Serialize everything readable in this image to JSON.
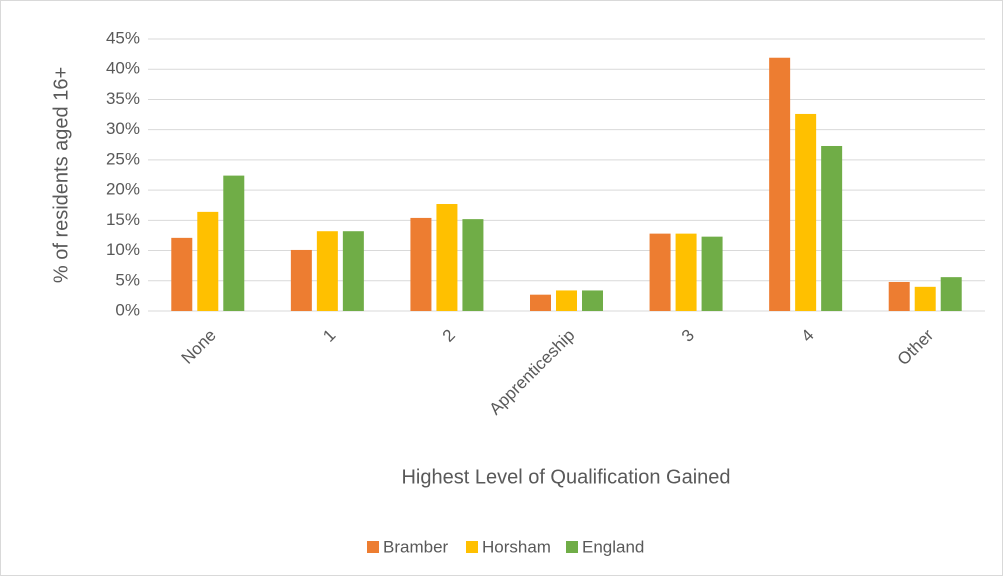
{
  "chart_data": {
    "type": "bar",
    "xlabel": "Highest Level of Qualification Gained",
    "ylabel": "% of residents aged 16+",
    "categories": [
      "None",
      "1",
      "2",
      "Apprenticeship",
      "3",
      "4",
      "Other"
    ],
    "series": [
      {
        "name": "Bramber",
        "color": "#ed7d31",
        "values": [
          12.1,
          10.1,
          15.4,
          2.7,
          12.8,
          41.9,
          4.8
        ]
      },
      {
        "name": "Horsham",
        "color": "#ffc000",
        "values": [
          16.4,
          13.2,
          17.7,
          3.4,
          12.8,
          32.6,
          4.0
        ]
      },
      {
        "name": "England",
        "color": "#70ad47",
        "values": [
          22.4,
          13.2,
          15.2,
          3.4,
          12.3,
          27.3,
          5.6
        ]
      }
    ],
    "ylim": [
      0,
      45
    ],
    "yticks": [
      {
        "value": 0,
        "label": "0%"
      },
      {
        "value": 5,
        "label": "5%"
      },
      {
        "value": 10,
        "label": "10%"
      },
      {
        "value": 15,
        "label": "15%"
      },
      {
        "value": 20,
        "label": "20%"
      },
      {
        "value": 25,
        "label": "25%"
      },
      {
        "value": 30,
        "label": "30%"
      },
      {
        "value": 35,
        "label": "35%"
      },
      {
        "value": 40,
        "label": "40%"
      },
      {
        "value": 45,
        "label": "45%"
      }
    ],
    "grid": true,
    "legend": "bottom"
  }
}
